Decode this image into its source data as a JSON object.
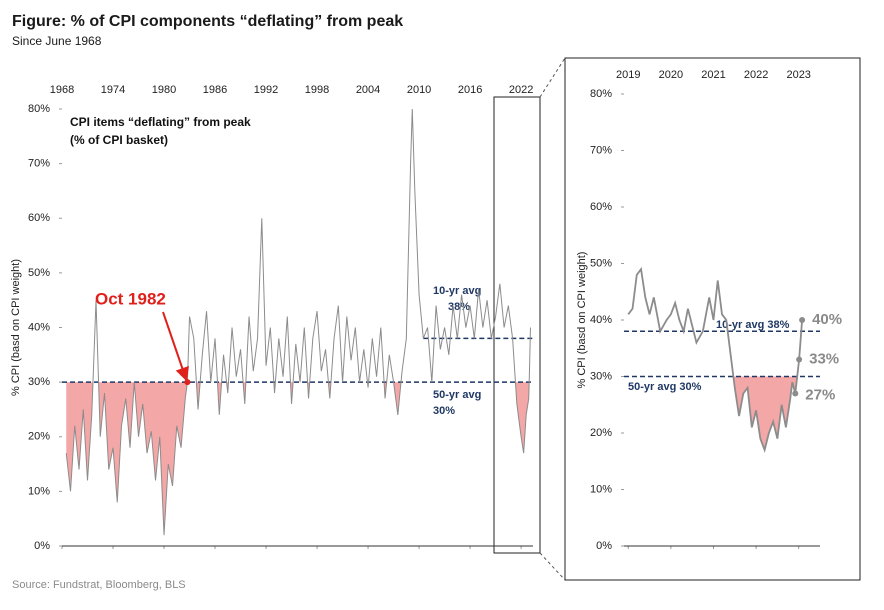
{
  "title": "Figure: % of CPI components “deflating” from peak",
  "subtitle": "Since June 1968",
  "source": "Source: Fundstrat, Bloomberg, BLS",
  "chart_data": [
    {
      "type": "line",
      "inner_title": [
        "CPI items “deflating” from peak",
        "(% of CPI basket)"
      ],
      "y_label": "% CPI (basd on CPI weight)",
      "xlim": [
        1968,
        2023.4
      ],
      "xticks": [
        1968,
        1974,
        1980,
        1986,
        1992,
        1998,
        2004,
        2010,
        2016,
        2022
      ],
      "ylim": [
        0,
        80
      ],
      "yticks": [
        {
          "value": 0,
          "label": "0%"
        },
        {
          "value": 10,
          "label": "10%"
        },
        {
          "value": 20,
          "label": "20%"
        },
        {
          "value": 30,
          "label": "30%"
        },
        {
          "value": 40,
          "label": "40%"
        },
        {
          "value": 50,
          "label": "50%"
        },
        {
          "value": 60,
          "label": "60%"
        },
        {
          "value": 70,
          "label": "70%"
        },
        {
          "value": 80,
          "label": "80%"
        }
      ],
      "color": "#8c8c8c",
      "fill_color": "#f4a7a7",
      "fill_below": 30,
      "x": [
        1968.5,
        1969,
        1969.5,
        1970,
        1970.5,
        1971,
        1971.5,
        1972,
        1972.5,
        1973,
        1973.5,
        1974,
        1974.5,
        1975,
        1975.5,
        1976,
        1976.5,
        1977,
        1977.5,
        1978,
        1978.5,
        1979,
        1979.5,
        1980,
        1980.5,
        1981,
        1981.5,
        1982,
        1982.5,
        1982.75,
        1983,
        1983.5,
        1984,
        1984.5,
        1985,
        1985.5,
        1986,
        1986.5,
        1987,
        1987.5,
        1988,
        1988.5,
        1989,
        1989.5,
        1990,
        1990.5,
        1991,
        1991.5,
        1992,
        1992.5,
        1993,
        1993.5,
        1994,
        1994.5,
        1995,
        1995.5,
        1996,
        1996.5,
        1997,
        1997.5,
        1998,
        1998.5,
        1999,
        1999.5,
        2000,
        2000.5,
        2001,
        2001.5,
        2002,
        2002.5,
        2003,
        2003.5,
        2004,
        2004.5,
        2005,
        2005.5,
        2006,
        2006.5,
        2007,
        2007.5,
        2008,
        2008.5,
        2009,
        2009.2,
        2009.5,
        2010,
        2010.5,
        2011,
        2011.5,
        2012,
        2012.5,
        2013,
        2013.5,
        2014,
        2014.5,
        2015,
        2015.5,
        2016,
        2016.5,
        2017,
        2017.5,
        2018,
        2018.5,
        2019,
        2019.5,
        2020,
        2020.5,
        2021,
        2021.5,
        2022,
        2022.3,
        2022.6,
        2022.9,
        2023,
        2023.1
      ],
      "values": [
        17,
        10,
        22,
        14,
        25,
        12,
        24,
        45,
        20,
        28,
        14,
        18,
        8,
        22,
        27,
        18,
        30,
        20,
        26,
        17,
        21,
        12,
        20,
        2,
        15,
        11,
        22,
        18,
        27,
        30,
        42,
        38,
        25,
        35,
        43,
        30,
        38,
        24,
        35,
        28,
        40,
        31,
        36,
        26,
        42,
        32,
        38,
        60,
        33,
        40,
        28,
        38,
        31,
        42,
        26,
        37,
        30,
        40,
        27,
        38,
        43,
        32,
        36,
        27,
        38,
        44,
        30,
        42,
        34,
        40,
        30,
        36,
        29,
        38,
        31,
        40,
        27,
        35,
        30,
        24,
        32,
        38,
        70,
        80,
        65,
        46,
        38,
        40,
        30,
        44,
        36,
        40,
        35,
        44,
        38,
        46,
        40,
        44,
        38,
        47,
        40,
        45,
        38,
        42,
        48,
        40,
        44,
        38,
        26,
        20,
        17,
        24,
        27,
        33,
        40
      ],
      "ref_lines": [
        {
          "value": 38,
          "from": 2010.5,
          "label": [
            "10-yr avg",
            "38%"
          ]
        },
        {
          "value": 30,
          "from": 1968,
          "label": [
            "50-yr avg",
            "30%"
          ]
        }
      ],
      "annotation": {
        "text": "Oct 1982",
        "x": 1982.75,
        "y": 30
      }
    },
    {
      "type": "line",
      "y_label": "% CPI (basd on CPI weight)",
      "xlim": [
        2018.9,
        2023.5
      ],
      "xticks": [
        2019,
        2020,
        2021,
        2022,
        2023
      ],
      "ylim": [
        0,
        80
      ],
      "yticks": [
        {
          "value": 0,
          "label": "0%"
        },
        {
          "value": 10,
          "label": "10%"
        },
        {
          "value": 20,
          "label": "20%"
        },
        {
          "value": 30,
          "label": "30%"
        },
        {
          "value": 40,
          "label": "40%"
        },
        {
          "value": 50,
          "label": "50%"
        },
        {
          "value": 60,
          "label": "60%"
        },
        {
          "value": 70,
          "label": "70%"
        },
        {
          "value": 80,
          "label": "80%"
        }
      ],
      "color": "#8c8c8c",
      "fill_color": "#f4a7a7",
      "fill_below": 30,
      "x": [
        2019,
        2019.1,
        2019.2,
        2019.3,
        2019.4,
        2019.5,
        2019.6,
        2019.75,
        2019.9,
        2020,
        2020.1,
        2020.2,
        2020.3,
        2020.4,
        2020.5,
        2020.6,
        2020.75,
        2020.9,
        2021,
        2021.1,
        2021.2,
        2021.3,
        2021.4,
        2021.5,
        2021.6,
        2021.7,
        2021.8,
        2021.9,
        2022,
        2022.1,
        2022.2,
        2022.3,
        2022.4,
        2022.5,
        2022.6,
        2022.7,
        2022.8,
        2022.85,
        2022.92,
        2023.01,
        2023.08
      ],
      "values": [
        41,
        42,
        48,
        49,
        44,
        41,
        44,
        38,
        40,
        41,
        43,
        40,
        38,
        42,
        39,
        36,
        38,
        44,
        40,
        47,
        41,
        40,
        34,
        28,
        23,
        27,
        28,
        21,
        24,
        19,
        17,
        20,
        22,
        19,
        25,
        21,
        26,
        29,
        27,
        33,
        40
      ],
      "value_labels": [
        null,
        null,
        null,
        null,
        null,
        null,
        null,
        null,
        null,
        null,
        null,
        null,
        null,
        null,
        null,
        null,
        null,
        null,
        null,
        null,
        null,
        null,
        null,
        null,
        null,
        null,
        null,
        null,
        null,
        null,
        null,
        null,
        null,
        null,
        null,
        null,
        null,
        null,
        "27%",
        "33%",
        "40%"
      ],
      "ref_lines": [
        {
          "value": 38,
          "label": [
            "10-yr avg 38%"
          ]
        },
        {
          "value": 30,
          "label": [
            "50-yr avg 30%"
          ]
        }
      ]
    }
  ]
}
